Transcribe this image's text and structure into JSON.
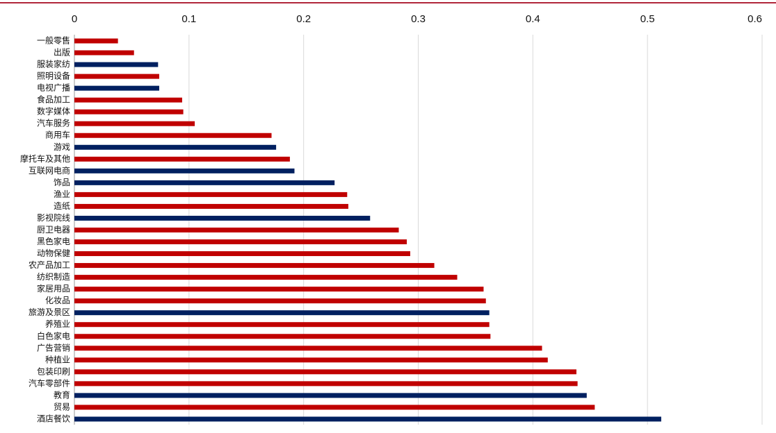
{
  "chart_data": {
    "type": "barh",
    "categories": [
      "一般零售",
      "出版",
      "服装家纺",
      "照明设备",
      "电视广播",
      "食品加工",
      "数字媒体",
      "汽车服务",
      "商用车",
      "游戏",
      "摩托车及其他",
      "互联网电商",
      "饰品",
      "渔业",
      "造纸",
      "影视院线",
      "厨卫电器",
      "黑色家电",
      "动物保健",
      "农产品加工",
      "纺织制造",
      "家居用品",
      "化妆品",
      "旅游及景区",
      "养殖业",
      "白色家电",
      "广告营销",
      "种植业",
      "包装印刷",
      "汽车零部件",
      "教育",
      "贸易",
      "酒店餐饮"
    ],
    "values": [
      0.038,
      0.052,
      0.073,
      0.074,
      0.074,
      0.094,
      0.095,
      0.105,
      0.172,
      0.176,
      0.188,
      0.192,
      0.227,
      0.238,
      0.239,
      0.258,
      0.283,
      0.29,
      0.293,
      0.314,
      0.334,
      0.357,
      0.359,
      0.362,
      0.362,
      0.363,
      0.408,
      0.413,
      0.438,
      0.439,
      0.447,
      0.454,
      0.512
    ],
    "colors": [
      "#c00000",
      "#c00000",
      "#002060",
      "#c00000",
      "#002060",
      "#c00000",
      "#c00000",
      "#c00000",
      "#c00000",
      "#002060",
      "#c00000",
      "#002060",
      "#002060",
      "#c00000",
      "#c00000",
      "#002060",
      "#c00000",
      "#c00000",
      "#c00000",
      "#c00000",
      "#c00000",
      "#c00000",
      "#c00000",
      "#002060",
      "#c00000",
      "#c00000",
      "#c00000",
      "#c00000",
      "#c00000",
      "#c00000",
      "#002060",
      "#c00000",
      "#002060"
    ],
    "xlim": [
      0,
      0.6
    ],
    "xticks": [
      0,
      0.1,
      0.2,
      0.3,
      0.4,
      0.5,
      0.6
    ],
    "grid": true
  }
}
